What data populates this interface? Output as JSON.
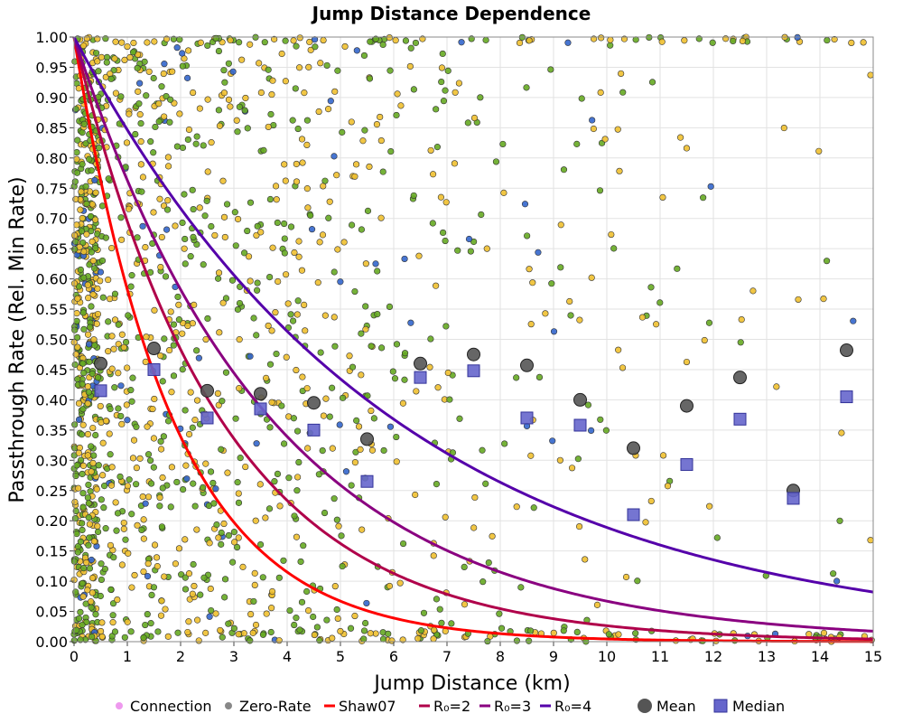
{
  "chart_data": {
    "type": "scatter",
    "title": "Jump Distance Dependence",
    "xlabel": "Jump Distance (km)",
    "ylabel": "Passthrough Rate (Rel. Min Rate)",
    "xlim": [
      0,
      15
    ],
    "ylim": [
      0,
      1
    ],
    "x_ticks": [
      "0",
      "1",
      "2",
      "3",
      "4",
      "5",
      "6",
      "7",
      "8",
      "9",
      "10",
      "11",
      "12",
      "13",
      "14",
      "15"
    ],
    "y_ticks": [
      "0.00",
      "0.05",
      "0.10",
      "0.15",
      "0.20",
      "0.25",
      "0.30",
      "0.35",
      "0.40",
      "0.45",
      "0.50",
      "0.55",
      "0.60",
      "0.65",
      "0.70",
      "0.75",
      "0.80",
      "0.85",
      "0.90",
      "0.95",
      "1.00"
    ],
    "grid": true,
    "legend_position": "bottom",
    "colors": {
      "connection": "#ee99ee",
      "zero_rate": "#888888",
      "shaw07": "#ff0000",
      "r2": "#b0004a",
      "r3": "#8a0080",
      "r4": "#5500aa",
      "r6": "#0000ee",
      "mean": "#555555",
      "median": "#6666cc",
      "point_yellow": "#f0c030",
      "point_green": "#66aa22",
      "point_blue": "#3366cc"
    },
    "curves": [
      {
        "name": "Shaw07",
        "color": "#ff0000",
        "decay_length_km": 1.85
      },
      {
        "name": "R₀=2",
        "color": "#b0004a",
        "decay_length_km": 2.75
      },
      {
        "name": "R₀=3",
        "color": "#8a0080",
        "decay_length_km": 3.7
      },
      {
        "name": "R₀=4",
        "color": "#5500aa",
        "decay_length_km": 6.0
      }
    ],
    "legend": [
      {
        "label": "Connection",
        "marker": "dot",
        "color": "#ee99ee"
      },
      {
        "label": "Zero-Rate",
        "marker": "dot",
        "color": "#888888"
      },
      {
        "label": "Shaw07",
        "marker": "line",
        "color": "#ff0000"
      },
      {
        "label": "R₀=2",
        "marker": "line",
        "color": "#b0004a"
      },
      {
        "label": "R₀=3",
        "marker": "line",
        "color": "#8a0080"
      },
      {
        "label": "R₀=4",
        "marker": "line",
        "color": "#5500aa"
      },
      {
        "label": "Mean",
        "marker": "circle",
        "color": "#555555"
      },
      {
        "label": "Median",
        "marker": "square",
        "color": "#6666cc"
      }
    ],
    "mean": {
      "x": [
        0.5,
        1.5,
        2.5,
        3.5,
        4.5,
        5.5,
        6.5,
        7.5,
        8.5,
        9.5,
        10.5,
        11.5,
        12.5,
        13.5,
        14.5
      ],
      "y": [
        0.46,
        0.485,
        0.415,
        0.41,
        0.395,
        0.335,
        0.46,
        0.475,
        0.457,
        0.4,
        0.32,
        0.39,
        0.437,
        0.25,
        0.482
      ]
    },
    "median": {
      "x": [
        0.5,
        1.5,
        2.5,
        3.5,
        4.5,
        5.5,
        6.5,
        7.5,
        8.5,
        9.5,
        10.5,
        11.5,
        12.5,
        13.5,
        14.5
      ],
      "y": [
        0.415,
        0.45,
        0.37,
        0.385,
        0.35,
        0.265,
        0.437,
        0.448,
        0.37,
        0.358,
        0.21,
        0.293,
        0.368,
        0.237,
        0.405
      ]
    },
    "scatter_note": "dense cloud of individual connection points colored yellow/green/blue"
  }
}
